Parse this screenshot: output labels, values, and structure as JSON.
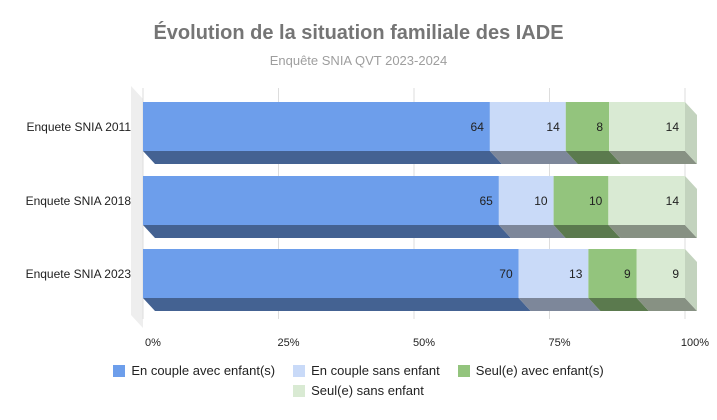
{
  "chart_data": {
    "type": "bar",
    "orientation": "horizontal",
    "stacked": "percent",
    "three_d": true,
    "title": "Évolution de la situation familiale des IADE",
    "subtitle": "Enquête SNIA QVT 2023-2024",
    "categories": [
      "Enquete SNIA 2011",
      "Enquete SNIA 2018",
      "Enquete SNIA 2023"
    ],
    "series": [
      {
        "name": "En couple avec enfant(s)",
        "color": "#6d9eeb",
        "values": [
          64,
          65,
          70
        ]
      },
      {
        "name": "En couple sans enfant",
        "color": "#c9daf8",
        "values": [
          14,
          10,
          13
        ]
      },
      {
        "name": "Seul(e) avec enfant(s)",
        "color": "#93c47d",
        "values": [
          8,
          10,
          9
        ]
      },
      {
        "name": "Seul(e) sans enfant",
        "color": "#d9ead3",
        "values": [
          14,
          14,
          9
        ]
      }
    ],
    "x_ticks": [
      "0%",
      "25%",
      "50%",
      "75%",
      "100%"
    ],
    "xlim": [
      0,
      1
    ],
    "grid": true,
    "legend_position": "bottom"
  }
}
